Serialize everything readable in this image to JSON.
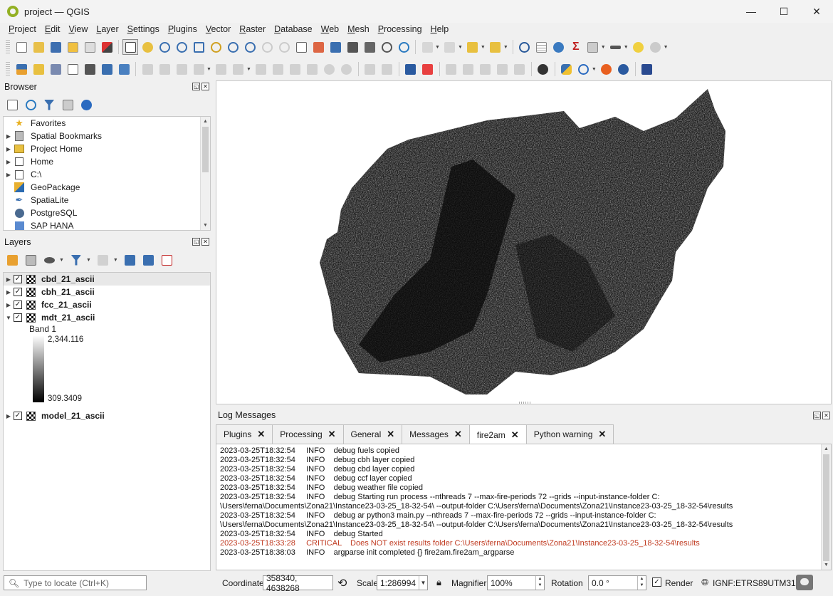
{
  "window": {
    "title": "project — QGIS",
    "controls": [
      "—",
      "☐",
      "✕"
    ]
  },
  "menu": [
    "Project",
    "Edit",
    "View",
    "Layer",
    "Settings",
    "Plugins",
    "Vector",
    "Raster",
    "Database",
    "Web",
    "Mesh",
    "Processing",
    "Help"
  ],
  "browser": {
    "title": "Browser",
    "items": [
      {
        "label": "Favorites",
        "icon": "star-icon",
        "expandable": false
      },
      {
        "label": "Spatial Bookmarks",
        "icon": "bookmark-icon",
        "expandable": true
      },
      {
        "label": "Project Home",
        "icon": "folder-icon",
        "expandable": true
      },
      {
        "label": "Home",
        "icon": "home-icon",
        "expandable": true
      },
      {
        "label": "C:\\",
        "icon": "drive-icon",
        "expandable": true
      },
      {
        "label": "GeoPackage",
        "icon": "geopackage-icon",
        "expandable": false
      },
      {
        "label": "SpatiaLite",
        "icon": "spatialite-icon",
        "expandable": false
      },
      {
        "label": "PostgreSQL",
        "icon": "postgresql-icon",
        "expandable": false
      },
      {
        "label": "SAP HANA",
        "icon": "sap-hana-icon",
        "expandable": false
      }
    ]
  },
  "layers": {
    "title": "Layers",
    "items": [
      {
        "name": "cbd_21_ascii",
        "checked": true,
        "expanded": false
      },
      {
        "name": "cbh_21_ascii",
        "checked": true,
        "expanded": false
      },
      {
        "name": "fcc_21_ascii",
        "checked": true,
        "expanded": false
      },
      {
        "name": "mdt_21_ascii",
        "checked": true,
        "expanded": true
      },
      {
        "name": "model_21_ascii",
        "checked": true,
        "expanded": false
      }
    ],
    "legend": {
      "band": "Band 1",
      "max": "2,344.116",
      "min": "309.3409"
    }
  },
  "log": {
    "title": "Log Messages",
    "tabs": [
      {
        "label": "Plugins",
        "active": false
      },
      {
        "label": "Processing",
        "active": false
      },
      {
        "label": "General",
        "active": false
      },
      {
        "label": "Messages",
        "active": false
      },
      {
        "label": "fire2am",
        "active": true
      },
      {
        "label": "Python warning",
        "active": false
      }
    ],
    "lines": [
      {
        "text": "2023-03-25T18:32:54     INFO    debug fuels copied",
        "level": "info"
      },
      {
        "text": "2023-03-25T18:32:54     INFO    debug cbh layer copied",
        "level": "info"
      },
      {
        "text": "2023-03-25T18:32:54     INFO    debug cbd layer copied",
        "level": "info"
      },
      {
        "text": "2023-03-25T18:32:54     INFO    debug ccf layer copied",
        "level": "info"
      },
      {
        "text": "2023-03-25T18:32:54     INFO    debug weather file copied",
        "level": "info"
      },
      {
        "text": "2023-03-25T18:32:54     INFO    debug Starting run process --nthreads 7 --max-fire-periods 72 --grids --input-instance-folder C:",
        "level": "info"
      },
      {
        "text": "\\Users\\ferna\\Documents\\Zona21\\Instance23-03-25_18-32-54\\ --output-folder C:\\Users\\ferna\\Documents\\Zona21\\Instance23-03-25_18-32-54\\results",
        "level": "info"
      },
      {
        "text": "2023-03-25T18:32:54     INFO    debug ar python3 main.py --nthreads 7 --max-fire-periods 72 --grids --input-instance-folder C:",
        "level": "info"
      },
      {
        "text": "\\Users\\ferna\\Documents\\Zona21\\Instance23-03-25_18-32-54\\ --output-folder C:\\Users\\ferna\\Documents\\Zona21\\Instance23-03-25_18-32-54\\results",
        "level": "info"
      },
      {
        "text": "2023-03-25T18:32:54     INFO    debug Started",
        "level": "info"
      },
      {
        "text": "2023-03-25T18:33:28     CRITICAL    Does NOT exist results folder C:\\Users\\ferna\\Documents\\Zona21\\Instance23-03-25_18-32-54\\results",
        "level": "critical"
      },
      {
        "text": "2023-03-25T18:38:03     INFO    argparse init completed {} fire2am.fire2am_argparse",
        "level": "info"
      }
    ]
  },
  "status": {
    "locate_placeholder": "Type to locate (Ctrl+K)",
    "coordinate_label": "Coordinate",
    "coordinate": "358340, 4638268",
    "scale_label": "Scale",
    "scale": "1:286994",
    "magnifier_label": "Magnifier",
    "magnifier": "100%",
    "rotation_label": "Rotation",
    "rotation": "0.0 °",
    "render_label": "Render",
    "crs": "IGNF:ETRS89UTM31"
  }
}
